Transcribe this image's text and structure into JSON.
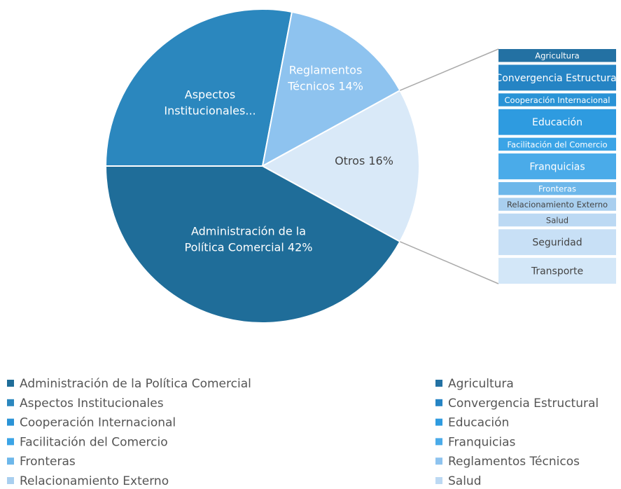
{
  "chart_data": {
    "type": "pie",
    "categories": [
      "Aspectos Institucionales",
      "Reglamentos Técnicos",
      "Otros",
      "Administración de la Política Comercial"
    ],
    "values": [
      28,
      14,
      16,
      42
    ],
    "value_labels": [
      "Aspectos Institucionales...",
      "Reglamentos Técnicos 14%",
      "Otros 16%",
      "Administración de la Política Comercial 42%"
    ],
    "colors": [
      "#2b87be",
      "#8ec3ef",
      "#d9e9f8",
      "#1f6d99"
    ],
    "breakdown": {
      "type": "bar",
      "categories": [
        "Agricultura",
        "Convergencia Estructural",
        "Cooperación Internacional",
        "Educación",
        "Facilitación del Comercio",
        "Franquicias",
        "Fronteras",
        "Relacionamiento Externo",
        "Salud",
        "Seguridad",
        "Transporte"
      ],
      "values": [
        1,
        2,
        1,
        2,
        1,
        2,
        1,
        1,
        1,
        2,
        2
      ],
      "colors": [
        "#2371a3",
        "#2584c4",
        "#2a93d6",
        "#2e9be0",
        "#3ba4e6",
        "#4aabe9",
        "#6db7ea",
        "#a9cfef",
        "#bcd9f3",
        "#c8e0f6",
        "#d3e7f8"
      ]
    }
  }
}
